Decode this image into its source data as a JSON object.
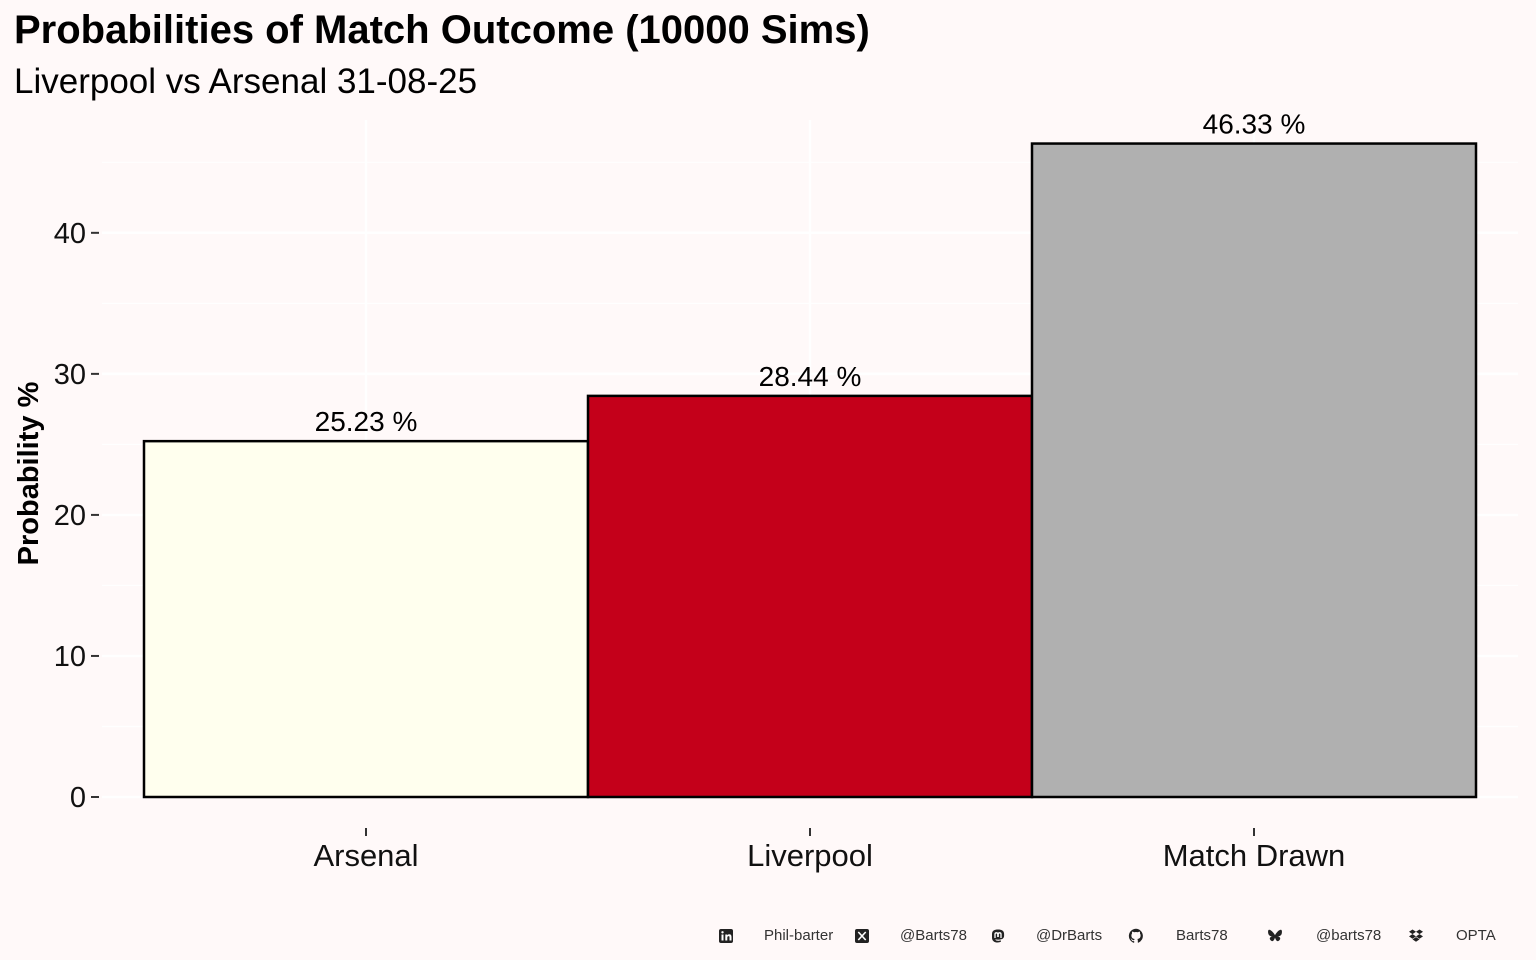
{
  "chart_data": {
    "type": "bar",
    "title": "Probabilities of Match Outcome (10000 Sims)",
    "subtitle": "Liverpool vs Arsenal 31-08-25",
    "xlabel": "",
    "ylabel": "Probability %",
    "categories": [
      "Arsenal",
      "Liverpool",
      "Match Drawn"
    ],
    "values": [
      25.23,
      28.44,
      46.33
    ],
    "data_labels": [
      "25.23  %",
      "28.44  %",
      "46.33  %"
    ],
    "colors": [
      "#ffffee",
      "#c4001a",
      "#b0b0b0"
    ],
    "ylim": [
      0,
      48
    ],
    "yticks": [
      0,
      10,
      20,
      30,
      40
    ],
    "grid": true,
    "legend": "none"
  },
  "footer": {
    "items": [
      {
        "icon": "linkedin-icon",
        "text": "Phil-barter"
      },
      {
        "icon": "x-twitter-icon",
        "text": "@Barts78"
      },
      {
        "icon": "mastodon-icon",
        "text": "@DrBarts"
      },
      {
        "icon": "github-icon",
        "text": "Barts78"
      },
      {
        "icon": "bluesky-icon",
        "text": "@barts78"
      },
      {
        "icon": "dropbox-icon",
        "text": "OPTA"
      }
    ]
  }
}
